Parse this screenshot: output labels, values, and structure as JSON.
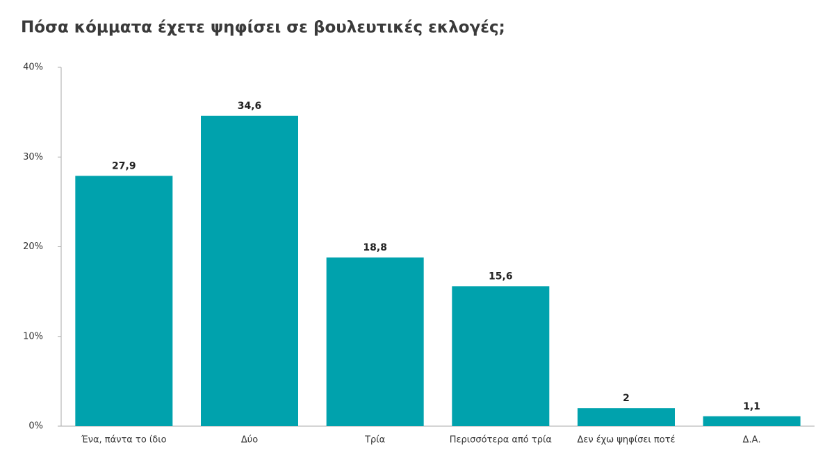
{
  "chart_data": {
    "type": "bar",
    "title": "Πόσα κόμματα έχετε ψηφίσει σε βουλευτικές εκλογές;",
    "categories": [
      "Ένα, πάντα το ίδιο",
      "Δύο",
      "Τρία",
      "Περισσότερα από τρία",
      "Δεν έχω ψηφίσει ποτέ",
      "Δ.Α."
    ],
    "values": [
      27.9,
      34.6,
      18.8,
      15.6,
      2,
      1.1
    ],
    "value_labels": [
      "27,9",
      "34,6",
      "18,8",
      "15,6",
      "2",
      "1,1"
    ],
    "color": "#00a2ad",
    "ylim": [
      0,
      40
    ],
    "yticks": [
      {
        "value": 0,
        "label": "0%"
      },
      {
        "value": 10,
        "label": "10%"
      },
      {
        "value": 20,
        "label": "20%"
      },
      {
        "value": 30,
        "label": "30%"
      },
      {
        "value": 40,
        "label": "40%"
      }
    ],
    "grid": false
  }
}
